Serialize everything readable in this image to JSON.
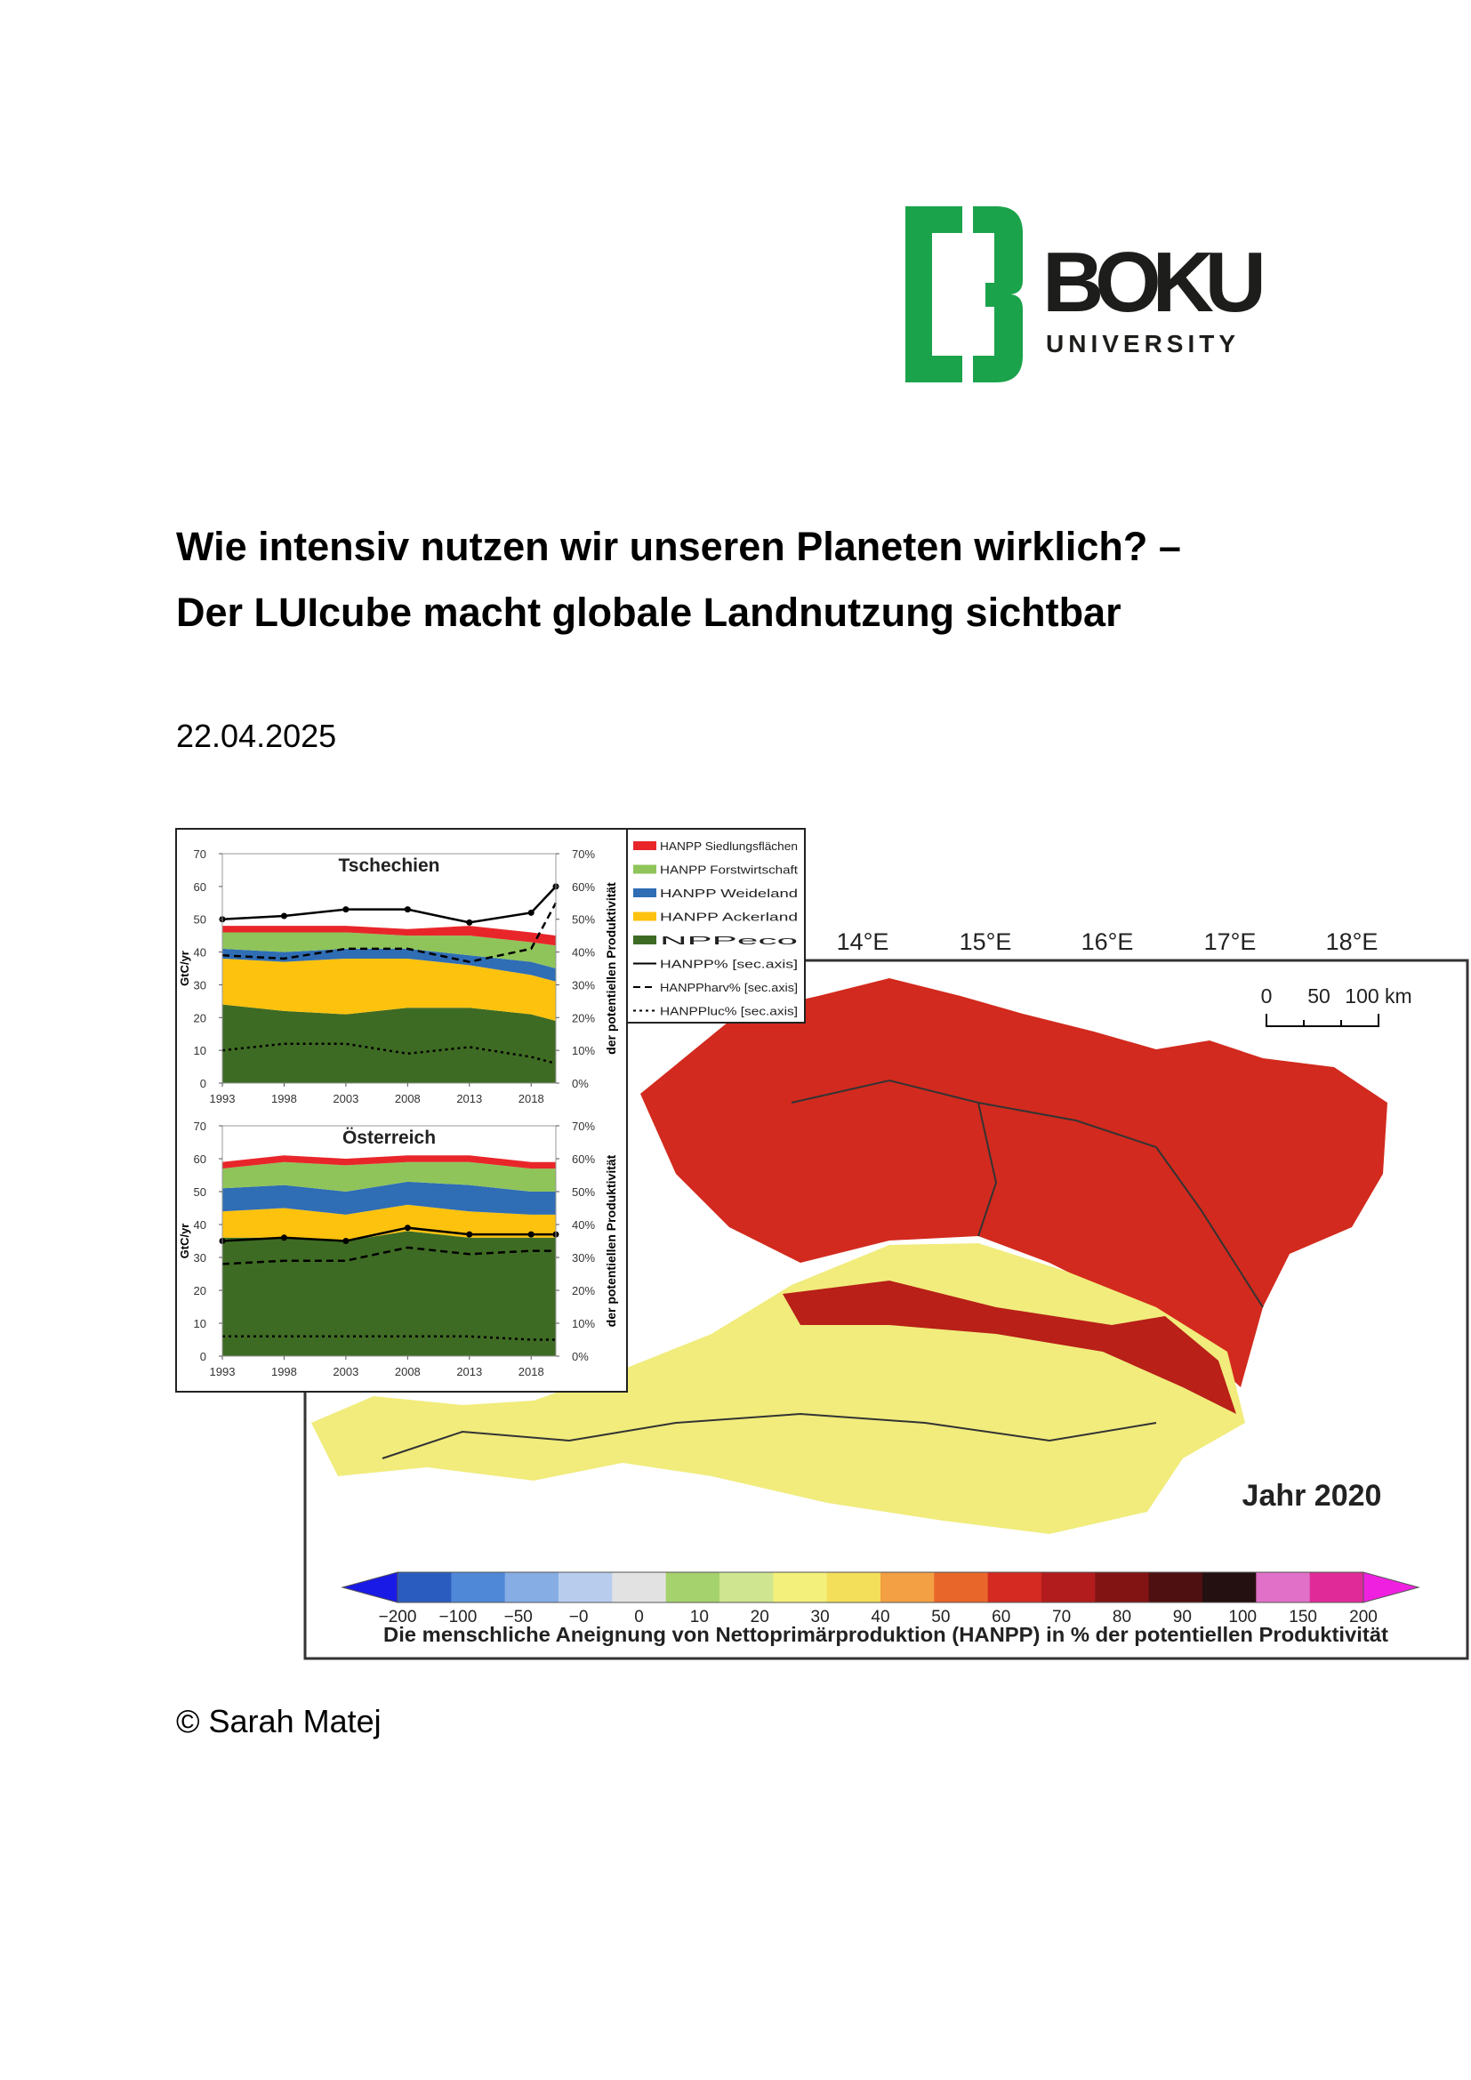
{
  "logo": {
    "name": "BOKU",
    "subtitle": "UNIVERSITY"
  },
  "header": {
    "title_line1": "Wie intensiv nutzen wir unseren Planeten wirklich? –",
    "title_line2": "Der LUIcube macht globale Landnutzung sichtbar",
    "date": "22.04.2025"
  },
  "chart_data": [
    {
      "type": "area",
      "title": "Tschechien",
      "ylabel": "GtC/yr",
      "y2label": "der potentiellen Produktivität",
      "x": [
        1993,
        1998,
        2003,
        2008,
        2013,
        2018,
        2020
      ],
      "xlim": [
        1993,
        2020
      ],
      "xticks": [
        1993,
        1998,
        2003,
        2008,
        2013,
        2018
      ],
      "ylim": [
        0,
        70
      ],
      "yticks": [
        0,
        10,
        20,
        30,
        40,
        50,
        60,
        70
      ],
      "y2lim": [
        0,
        70
      ],
      "y2ticks": [
        {
          "value": 0,
          "label": "0%"
        },
        {
          "value": 10,
          "label": "10%"
        },
        {
          "value": 20,
          "label": "20%"
        },
        {
          "value": 30,
          "label": "30%"
        },
        {
          "value": 40,
          "label": "40%"
        },
        {
          "value": 50,
          "label": "50%"
        },
        {
          "value": 60,
          "label": "60%"
        },
        {
          "value": 70,
          "label": "70%"
        }
      ],
      "series": [
        {
          "name": "NPPeco",
          "color": "#3e6b23",
          "values": [
            24,
            22,
            21,
            23,
            23,
            21,
            19
          ]
        },
        {
          "name": "HANPP Ackerland",
          "color": "#fdc20e",
          "values": [
            14,
            15,
            17,
            15,
            13,
            12,
            12
          ]
        },
        {
          "name": "HANPP Weideland",
          "color": "#2f6db5",
          "values": [
            3,
            3,
            3,
            3,
            3,
            4,
            4
          ]
        },
        {
          "name": "HANPP Forstwirtschaft",
          "color": "#8fc45a",
          "values": [
            5,
            6,
            5,
            4,
            6,
            6,
            7
          ]
        },
        {
          "name": "HANPP Siedlungsflächen",
          "color": "#e8262a",
          "values": [
            2,
            2,
            2,
            2,
            3,
            3,
            3
          ]
        },
        {
          "name": "HANPP% [sec.axis]",
          "color": "#000000",
          "axis": "y2",
          "style": "marker",
          "values": [
            50,
            51,
            53,
            53,
            49,
            52,
            60
          ]
        },
        {
          "name": "HANPPharv% [sec.axis]",
          "color": "#000000",
          "axis": "y2",
          "style": "dashed",
          "values": [
            39,
            38,
            41,
            41,
            37,
            41,
            55
          ]
        },
        {
          "name": "HANPPluc% [sec.axis]",
          "color": "#000000",
          "axis": "y2",
          "style": "dotted",
          "values": [
            10,
            12,
            12,
            9,
            11,
            8,
            6
          ]
        }
      ]
    },
    {
      "type": "area",
      "title": "Österreich",
      "ylabel": "GtC/yr",
      "y2label": "der potentiellen Produktivität",
      "x": [
        1993,
        1998,
        2003,
        2008,
        2013,
        2018,
        2020
      ],
      "xlim": [
        1993,
        2020
      ],
      "xticks": [
        1993,
        1998,
        2003,
        2008,
        2013,
        2018
      ],
      "ylim": [
        0,
        70
      ],
      "yticks": [
        0,
        10,
        20,
        30,
        40,
        50,
        60,
        70
      ],
      "y2lim": [
        0,
        70
      ],
      "y2ticks": [
        {
          "value": 0,
          "label": "0%"
        },
        {
          "value": 10,
          "label": "10%"
        },
        {
          "value": 20,
          "label": "20%"
        },
        {
          "value": 30,
          "label": "30%"
        },
        {
          "value": 40,
          "label": "40%"
        },
        {
          "value": 50,
          "label": "50%"
        },
        {
          "value": 60,
          "label": "60%"
        },
        {
          "value": 70,
          "label": "70%"
        }
      ],
      "series": [
        {
          "name": "NPPeco",
          "color": "#3e6b23",
          "values": [
            36,
            36,
            35,
            38,
            36,
            36,
            36
          ]
        },
        {
          "name": "HANPP Ackerland",
          "color": "#fdc20e",
          "values": [
            8,
            9,
            8,
            8,
            8,
            7,
            7
          ]
        },
        {
          "name": "HANPP Weideland",
          "color": "#2f6db5",
          "values": [
            7,
            7,
            7,
            7,
            8,
            7,
            7
          ]
        },
        {
          "name": "HANPP Forstwirtschaft",
          "color": "#8fc45a",
          "values": [
            6,
            7,
            8,
            6,
            7,
            7,
            7
          ]
        },
        {
          "name": "HANPP Siedlungsflächen",
          "color": "#e8262a",
          "values": [
            2,
            2,
            2,
            2,
            2,
            2,
            2
          ]
        },
        {
          "name": "HANPP% [sec.axis]",
          "color": "#000000",
          "axis": "y2",
          "style": "marker",
          "values": [
            35,
            36,
            35,
            39,
            37,
            37,
            37
          ]
        },
        {
          "name": "HANPPharv% [sec.axis]",
          "color": "#000000",
          "axis": "y2",
          "style": "dashed",
          "values": [
            28,
            29,
            29,
            33,
            31,
            32,
            32
          ]
        },
        {
          "name": "HANPPluc% [sec.axis]",
          "color": "#000000",
          "axis": "y2",
          "style": "dotted",
          "values": [
            6,
            6,
            6,
            6,
            6,
            5,
            5
          ]
        }
      ]
    }
  ],
  "map": {
    "longitudes": [
      "14°E",
      "15°E",
      "16°E",
      "17°E",
      "18°E"
    ],
    "scale_labels": [
      "0",
      "50",
      "100 km"
    ],
    "year": "Jahr 2020",
    "colorbar": {
      "labels": [
        "−200",
        "−100",
        "−50",
        "−0",
        "0",
        "10",
        "20",
        "30",
        "40",
        "50",
        "60",
        "70",
        "80",
        "90",
        "100",
        "150",
        "200"
      ],
      "colors": [
        "#1a1ae6",
        "#2a5cc0",
        "#4f88d6",
        "#86aee4",
        "#b8cdee",
        "#e2e2e2",
        "#a6d26e",
        "#cfe58f",
        "#f3f07c",
        "#f3df5a",
        "#f2a043",
        "#e9662a",
        "#d42a22",
        "#b21c1c",
        "#821414",
        "#4e1010",
        "#241010",
        "#e070c8",
        "#e02a98",
        "#f020e0"
      ],
      "label": "Die menschliche Aneignung von Nettoprimärproduktion (HANPP) in % der potentiellen Produktivität"
    }
  },
  "caption": "© Sarah Matej"
}
